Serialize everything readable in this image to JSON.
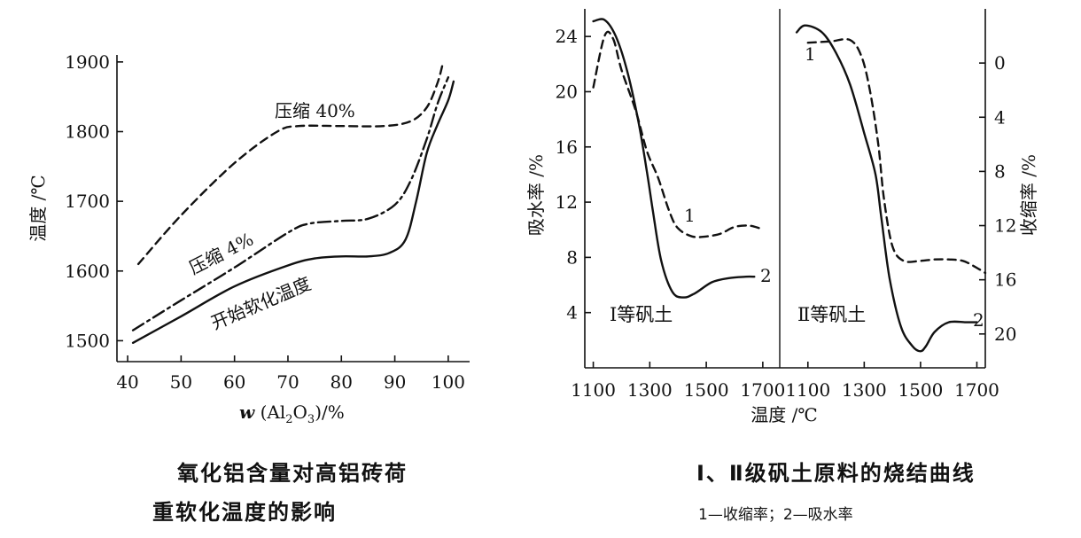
{
  "chart_data": [
    {
      "type": "line",
      "title": "",
      "xlabel": "w (Al2O3)/%",
      "ylabel": "温度 /℃",
      "xlim": [
        38,
        104
      ],
      "ylim": [
        1470,
        1910
      ],
      "xticks": [
        40,
        50,
        60,
        70,
        80,
        90,
        100
      ],
      "yticks": [
        1500,
        1600,
        1700,
        1800,
        1900
      ],
      "grid": false,
      "series": [
        {
          "name": "压缩 40%",
          "style": "dashed",
          "x": [
            42,
            50,
            60,
            68,
            72,
            80,
            88,
            93,
            96,
            98,
            99
          ],
          "y": [
            1610,
            1680,
            1755,
            1800,
            1808,
            1808,
            1808,
            1815,
            1835,
            1870,
            1898
          ]
        },
        {
          "name": "压缩 4%",
          "style": "dashdot",
          "x": [
            41,
            50,
            60,
            70,
            74,
            80,
            85,
            90,
            93,
            96,
            98,
            100
          ],
          "y": [
            1515,
            1558,
            1605,
            1655,
            1668,
            1672,
            1675,
            1695,
            1730,
            1790,
            1840,
            1878
          ]
        },
        {
          "name": "开始软化温度",
          "style": "solid",
          "x": [
            41,
            50,
            60,
            70,
            75,
            80,
            85,
            89,
            92,
            94,
            96,
            98,
            100,
            101
          ],
          "y": [
            1497,
            1535,
            1578,
            1608,
            1618,
            1621,
            1621,
            1626,
            1645,
            1700,
            1770,
            1810,
            1845,
            1872
          ]
        }
      ]
    },
    {
      "type": "line",
      "title": "",
      "xlabel": "温度 /℃",
      "ylabel": "吸水率 /%",
      "y2label": "收缩率 /%",
      "panels": [
        {
          "label": "Ⅰ等矾土",
          "xlim": [
            1070,
            1760
          ],
          "xticks": [
            1100,
            1300,
            1500,
            1700
          ]
        },
        {
          "label": "Ⅱ等矾土",
          "xlim": [
            1000,
            1730
          ],
          "xticks": [
            1100,
            1300,
            1500,
            1700
          ]
        }
      ],
      "ylim": [
        0,
        26
      ],
      "yticks": [
        4,
        8,
        12,
        16,
        20,
        24
      ],
      "y2lim": [
        22.5,
        -4
      ],
      "y2ticks": [
        0,
        4,
        8,
        12,
        16,
        20
      ],
      "grid": false,
      "series": [
        {
          "name": "1",
          "panel": 0,
          "axis": "right",
          "style": "dashed",
          "x": [
            1100,
            1140,
            1170,
            1200,
            1250,
            1290,
            1330,
            1370,
            1400,
            1450,
            1500,
            1550,
            1600,
            1650,
            1690
          ],
          "y": [
            1.8,
            -2.0,
            -1.8,
            0.5,
            3.5,
            6.5,
            8.5,
            11.0,
            12.2,
            12.8,
            12.8,
            12.6,
            12.1,
            12.0,
            12.2
          ]
        },
        {
          "name": "2",
          "panel": 0,
          "axis": "left",
          "style": "solid",
          "x": [
            1100,
            1140,
            1180,
            1220,
            1260,
            1290,
            1310,
            1340,
            1380,
            1420,
            1460,
            1520,
            1580,
            1640,
            1670
          ],
          "y": [
            25.1,
            25.2,
            24.0,
            21.5,
            17.8,
            14.2,
            11.5,
            7.8,
            5.5,
            5.1,
            5.4,
            6.2,
            6.5,
            6.6,
            6.6
          ]
        },
        {
          "name": "1",
          "panel": 1,
          "axis": "right",
          "style": "dashed",
          "x": [
            1100,
            1180,
            1250,
            1290,
            1320,
            1350,
            1370,
            1400,
            1440,
            1500,
            1550,
            1600,
            1650,
            1690,
            1730
          ],
          "y": [
            -1.5,
            -1.6,
            -1.7,
            -0.5,
            2.0,
            6.0,
            10.0,
            13.5,
            14.6,
            14.6,
            14.5,
            14.5,
            14.6,
            15.0,
            15.5
          ]
        },
        {
          "name": "2",
          "panel": 1,
          "axis": "left",
          "style": "solid",
          "x": [
            1060,
            1090,
            1150,
            1200,
            1250,
            1300,
            1340,
            1360,
            1390,
            1430,
            1470,
            1500,
            1520,
            1550,
            1600,
            1660,
            1700
          ],
          "y": [
            24.3,
            24.8,
            24.3,
            22.8,
            20.5,
            17.0,
            14.0,
            11.0,
            6.5,
            3.0,
            1.6,
            1.2,
            1.6,
            2.6,
            3.3,
            3.3,
            3.3
          ]
        }
      ]
    }
  ],
  "labels": {
    "left_curve_40": "压缩 40%",
    "left_curve_4": "压缩 4%",
    "left_curve_soft": "开始软化温度",
    "left_xlabel_w": "w",
    "left_xlabel_rest": "(Al",
    "left_xlabel_sub2": "2",
    "left_xlabel_o": "O",
    "left_xlabel_sub3": "3",
    "left_xlabel_end": ")/%",
    "right_curve1_p1": "1",
    "right_curve2_p1": "2",
    "right_curve1_p2": "1",
    "right_curve2_p2": "2"
  },
  "captions": {
    "left_line1": "氧化铝含量对高铝砖荷",
    "left_line2": "重软化温度的影响",
    "right_line1": "Ⅰ、Ⅱ级矾土原料的烧结曲线",
    "right_line2": "1—收缩率；2—吸水率"
  }
}
